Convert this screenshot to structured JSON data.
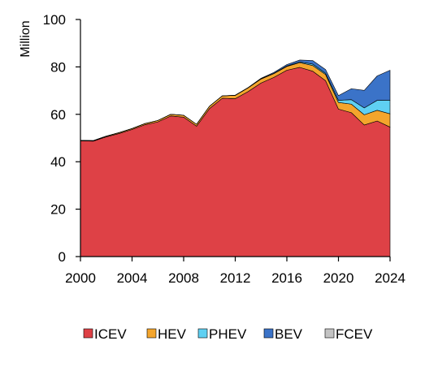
{
  "chart_data": {
    "type": "area",
    "stacked": true,
    "ylabel": "Million",
    "xlabel": "",
    "title": "",
    "xlim": [
      2000,
      2024
    ],
    "ylim": [
      0,
      100
    ],
    "x_ticks": [
      "2000",
      "2004",
      "2008",
      "2012",
      "2016",
      "2020",
      "2024"
    ],
    "y_ticks": [
      "0",
      "20",
      "40",
      "60",
      "80",
      "100"
    ],
    "grid": false,
    "legend_position": "bottom",
    "x": [
      2000,
      2001,
      2002,
      2003,
      2004,
      2005,
      2006,
      2007,
      2008,
      2009,
      2010,
      2011,
      2012,
      2013,
      2014,
      2015,
      2016,
      2017,
      2018,
      2019,
      2020,
      2021,
      2022,
      2023,
      2024
    ],
    "series": [
      {
        "name": "ICEV",
        "color": "#de4146",
        "values": [
          48.8,
          48.7,
          50.5,
          51.9,
          53.6,
          55.6,
          56.8,
          59.3,
          58.8,
          55.0,
          62.4,
          66.8,
          66.6,
          69.6,
          73.2,
          75.6,
          78.6,
          79.8,
          78.2,
          74.2,
          62.2,
          60.7,
          55.5,
          57.2,
          54.6
        ]
      },
      {
        "name": "HEV",
        "color": "#f4a52c",
        "values": [
          0.2,
          0.2,
          0.3,
          0.4,
          0.4,
          0.5,
          0.6,
          0.7,
          0.8,
          0.8,
          1.0,
          1.0,
          1.4,
          1.6,
          1.7,
          1.6,
          1.6,
          2.0,
          2.4,
          2.6,
          2.8,
          3.6,
          4.3,
          4.5,
          5.6
        ]
      },
      {
        "name": "PHEV",
        "color": "#5fd0f2",
        "values": [
          0,
          0,
          0,
          0,
          0,
          0,
          0,
          0,
          0,
          0,
          0,
          0,
          0,
          0,
          0.1,
          0.1,
          0.2,
          0.3,
          0.6,
          0.5,
          0.9,
          1.9,
          2.9,
          4.2,
          5.8
        ]
      },
      {
        "name": "BEV",
        "color": "#3b73c8",
        "values": [
          0,
          0,
          0,
          0,
          0,
          0,
          0,
          0,
          0,
          0,
          0,
          0,
          0.1,
          0.1,
          0.2,
          0.4,
          0.6,
          0.8,
          1.5,
          1.6,
          2.0,
          4.6,
          7.4,
          10.3,
          12.6
        ]
      },
      {
        "name": "FCEV",
        "color": "#c3c3c3",
        "values": [
          0,
          0,
          0,
          0,
          0,
          0,
          0,
          0,
          0,
          0,
          0,
          0,
          0,
          0,
          0,
          0,
          0,
          0,
          0,
          0,
          0,
          0,
          0,
          0,
          0
        ]
      }
    ]
  }
}
